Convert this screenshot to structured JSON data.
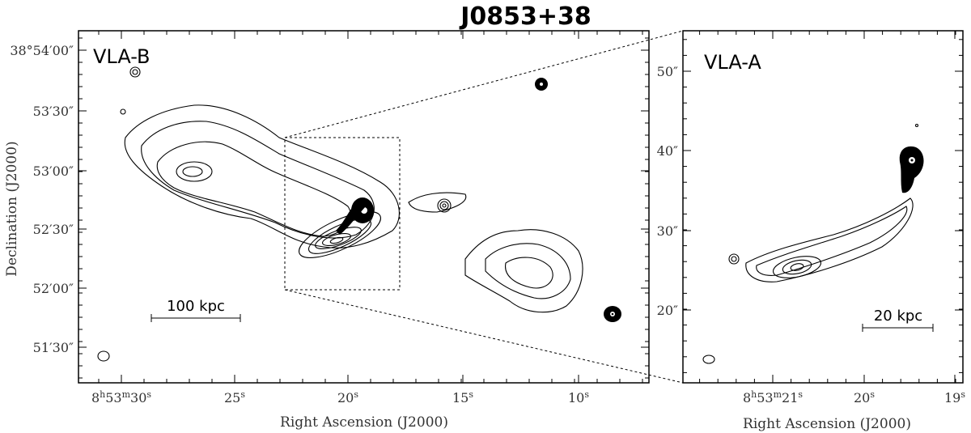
{
  "title": "J0853+38",
  "panels": [
    {
      "label": "VLA-B",
      "scale_bar": "100 kpc",
      "x_axis_title": "Right Ascension (J2000)",
      "y_axis_title": "Declination (J2000)",
      "x_ticks": [
        [
          "8",
          "h",
          "53",
          "m",
          "30",
          "s"
        ],
        [
          "25",
          "s"
        ],
        [
          "20",
          "s"
        ],
        [
          "15",
          "s"
        ],
        [
          "10",
          "s"
        ]
      ],
      "y_ticks": [
        "38°54′00″",
        "53′30″",
        "53′00″",
        "52′30″",
        "52′00″",
        "51′30″"
      ]
    },
    {
      "label": "VLA-A",
      "scale_bar": "20 kpc",
      "x_axis_title": "Right Ascension (J2000)",
      "x_ticks": [
        [
          "8",
          "h",
          "53",
          "m",
          "21",
          "s"
        ],
        [
          "20",
          "s"
        ],
        [
          "19",
          "s"
        ]
      ],
      "y_ticks": [
        "50″",
        "40″",
        "30″",
        "20″"
      ]
    }
  ]
}
